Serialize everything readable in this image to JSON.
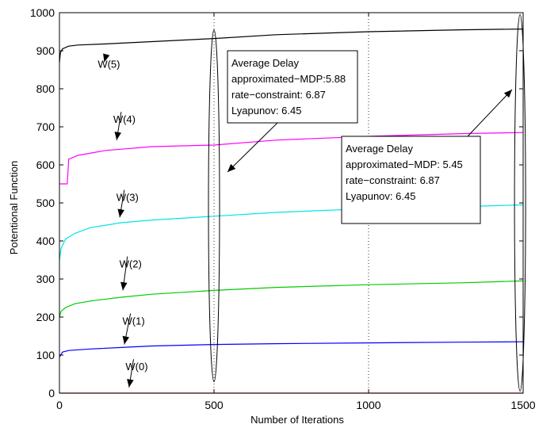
{
  "chart_data": {
    "type": "line",
    "xlabel": "Number of Iterations",
    "ylabel": "Potentional Function",
    "xlim": [
      0,
      1500
    ],
    "ylim": [
      0,
      1000
    ],
    "xticks": [
      0,
      500,
      1000,
      1500
    ],
    "yticks": [
      0,
      100,
      200,
      300,
      400,
      500,
      600,
      700,
      800,
      900,
      1000
    ],
    "vlines": [
      500,
      1000
    ],
    "series": [
      {
        "name": "W(5)",
        "color": "#000000",
        "x": [
          0,
          3,
          10,
          30,
          60,
          150,
          300,
          500,
          700,
          1000,
          1300,
          1500
        ],
        "y": [
          870,
          895,
          905,
          912,
          915,
          918,
          924,
          932,
          942,
          950,
          955,
          957
        ]
      },
      {
        "name": "W(4)",
        "color": "#ff00ff",
        "x": [
          0,
          25,
          30,
          60,
          150,
          300,
          500,
          700,
          1000,
          1300,
          1500
        ],
        "y": [
          550,
          550,
          615,
          625,
          638,
          648,
          652,
          665,
          675,
          682,
          685
        ]
      },
      {
        "name": "W(3)",
        "color": "#00e5e5",
        "x": [
          0,
          5,
          20,
          50,
          100,
          200,
          300,
          500,
          700,
          1000,
          1300,
          1500
        ],
        "y": [
          350,
          380,
          405,
          420,
          435,
          448,
          455,
          465,
          475,
          485,
          490,
          495
        ]
      },
      {
        "name": "W(2)",
        "color": "#00cc00",
        "x": [
          0,
          5,
          20,
          50,
          100,
          200,
          300,
          500,
          700,
          1000,
          1300,
          1500
        ],
        "y": [
          200,
          215,
          225,
          235,
          242,
          252,
          260,
          270,
          278,
          285,
          290,
          295
        ]
      },
      {
        "name": "W(1)",
        "color": "#0000ff",
        "x": [
          0,
          10,
          30,
          100,
          200,
          300,
          500,
          700,
          1000,
          1300,
          1500
        ],
        "y": [
          95,
          108,
          112,
          116,
          120,
          124,
          128,
          130,
          132,
          134,
          135
        ]
      },
      {
        "name": "W(0)",
        "color": "#ff0000",
        "x": [
          0,
          1500
        ],
        "y": [
          0,
          0
        ]
      }
    ],
    "annotations": [
      {
        "label": "W(5)",
        "x": 160,
        "y": 855,
        "arrow_to": [
          145,
          870
        ]
      },
      {
        "label": "W(4)",
        "x": 210,
        "y": 710,
        "arrow_to": [
          185,
          665
        ]
      },
      {
        "label": "W(3)",
        "x": 220,
        "y": 505,
        "arrow_to": [
          195,
          462
        ]
      },
      {
        "label": "W(2)",
        "x": 230,
        "y": 330,
        "arrow_to": [
          205,
          270
        ]
      },
      {
        "label": "W(1)",
        "x": 240,
        "y": 180,
        "arrow_to": [
          210,
          128
        ]
      },
      {
        "label": "W(0)",
        "x": 250,
        "y": 60,
        "arrow_to": [
          225,
          15
        ]
      }
    ],
    "boxes": [
      {
        "lines": [
          "Average Delay",
          "approximated−MDP:5.88",
          "rate−constraint:  6.87",
          "Lyapunov: 6.45"
        ]
      },
      {
        "lines": [
          "Average Delay",
          "approximated−MDP: 5.45",
          "rate−constraint: 6.87",
          "Lyapunov: 6.45"
        ]
      }
    ]
  }
}
